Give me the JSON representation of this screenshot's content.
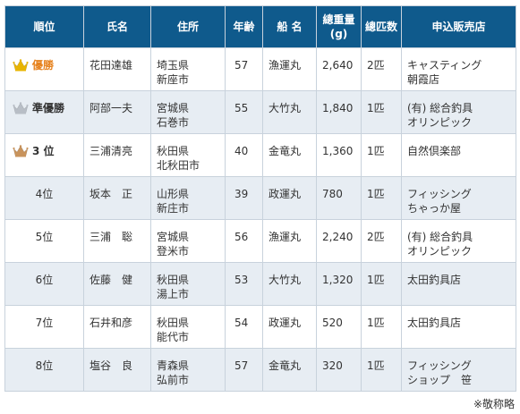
{
  "headers": [
    "順位",
    "氏名",
    "住所",
    "年齢",
    "船 名",
    "總重量(g)",
    "總匹数",
    "申込販売店"
  ],
  "header_lines": {
    "weight": [
      "總重量",
      "(g)"
    ]
  },
  "rows": [
    {
      "rank": "優勝",
      "medal": "gold",
      "name": "花田達雄",
      "addr1": "埼玉県",
      "addr2": "新座市",
      "age": "57",
      "boat": "漁運丸",
      "weight": "2,640",
      "count": "2匹",
      "shop1": "キャスティング",
      "shop2": "朝霞店"
    },
    {
      "rank": "準優勝",
      "medal": "silver",
      "name": "阿部一夫",
      "addr1": "宮城県",
      "addr2": "石巻市",
      "age": "55",
      "boat": "大竹丸",
      "weight": "1,840",
      "count": "1匹",
      "shop1": "(有) 総合釣具",
      "shop2": "オリンピック"
    },
    {
      "rank": "3 位",
      "medal": "bronze",
      "name": "三浦清亮",
      "addr1": "秋田県",
      "addr2": "北秋田市",
      "age": "40",
      "boat": "金竜丸",
      "weight": "1,360",
      "count": "1匹",
      "shop1": "自然倶楽部",
      "shop2": ""
    },
    {
      "rank": "4位",
      "medal": "",
      "name": "坂本　正",
      "addr1": "山形県",
      "addr2": "新庄市",
      "age": "39",
      "boat": "政運丸",
      "weight": "780",
      "count": "1匹",
      "shop1": "フィッシング",
      "shop2": "ちゃっか屋"
    },
    {
      "rank": "5位",
      "medal": "",
      "name": "三浦　聡",
      "addr1": "宮城県",
      "addr2": "登米市",
      "age": "56",
      "boat": "漁運丸",
      "weight": "2,240",
      "count": "2匹",
      "shop1": "(有) 総合釣具",
      "shop2": "オリンピック"
    },
    {
      "rank": "6位",
      "medal": "",
      "name": "佐藤　健",
      "addr1": "秋田県",
      "addr2": "湯上市",
      "age": "53",
      "boat": "大竹丸",
      "weight": "1,320",
      "count": "1匹",
      "shop1": "太田釣具店",
      "shop2": ""
    },
    {
      "rank": "7位",
      "medal": "",
      "name": "石井和彦",
      "addr1": "秋田県",
      "addr2": "能代市",
      "age": "54",
      "boat": "政運丸",
      "weight": "520",
      "count": "1匹",
      "shop1": "太田釣具店",
      "shop2": ""
    },
    {
      "rank": "8位",
      "medal": "",
      "name": "塩谷　良",
      "addr1": "青森県",
      "addr2": "弘前市",
      "age": "57",
      "boat": "金竜丸",
      "weight": "320",
      "count": "1匹",
      "shop1": "フィッシング",
      "shop2": "ショップ　笹"
    }
  ],
  "colors": {
    "header_bg": "#0f5a8c",
    "shade_bg": "#e7edf3",
    "winner_text": "#e6821e",
    "gold": "#e8b400",
    "silver": "#b8bec6",
    "bronze": "#c8935c"
  },
  "footnote": "※敬称略"
}
